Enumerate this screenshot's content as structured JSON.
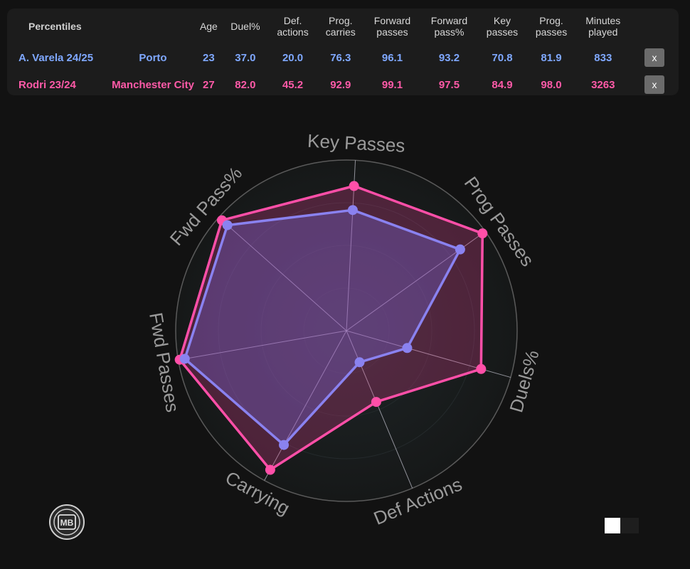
{
  "table": {
    "headers": [
      "Percentiles",
      "",
      "Age",
      "Duel%",
      "Def.\nactions",
      "Prog.\ncarries",
      "Forward\npasses",
      "Forward\npass%",
      "Key\npasses",
      "Prog.\npasses",
      "Minutes\nplayed"
    ],
    "rows": [
      {
        "name": "A. Varela 24/25",
        "team": "Porto",
        "age": "23",
        "duel": "37.0",
        "def": "20.0",
        "carries": "76.3",
        "fwd": "96.1",
        "fwdpct": "93.2",
        "key": "70.8",
        "prog": "81.9",
        "minutes": "833",
        "remove_label": "x"
      },
      {
        "name": "Rodri 23/24",
        "team": "Manchester City",
        "age": "27",
        "duel": "82.0",
        "def": "45.2",
        "carries": "92.9",
        "fwd": "99.1",
        "fwdpct": "97.5",
        "key": "84.9",
        "prog": "98.0",
        "minutes": "3263",
        "remove_label": "x"
      }
    ]
  },
  "chart_data": {
    "type": "radar",
    "axes": [
      "Key Passes",
      "Prog Passes",
      "Duels%",
      "Def Actions",
      "Carrying",
      "Fwd Passes",
      "Fwd Pass%"
    ],
    "range": [
      0,
      100
    ],
    "series": [
      {
        "name": "A. Varela 24/25",
        "color": "#8a82f0",
        "values": [
          70.8,
          81.9,
          37.0,
          20.0,
          76.3,
          96.1,
          93.2
        ]
      },
      {
        "name": "Rodri 23/24",
        "color": "#ff4fa8",
        "values": [
          84.9,
          98.0,
          82.0,
          45.2,
          92.9,
          99.1,
          97.5
        ]
      }
    ]
  },
  "logo": {
    "text": "MB"
  },
  "colors": {
    "player1": "#7fa8ff",
    "player2": "#ff5aa8",
    "background": "#121212"
  }
}
